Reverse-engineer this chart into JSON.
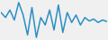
{
  "values": [
    55,
    45,
    60,
    40,
    75,
    50,
    10,
    65,
    5,
    45,
    30,
    60,
    20,
    70,
    15,
    55,
    35,
    50,
    30,
    45,
    38,
    42,
    35,
    40,
    37
  ],
  "line_color": "#2a8fc4",
  "background_color": "#f0f0f0",
  "linewidth": 1.1
}
